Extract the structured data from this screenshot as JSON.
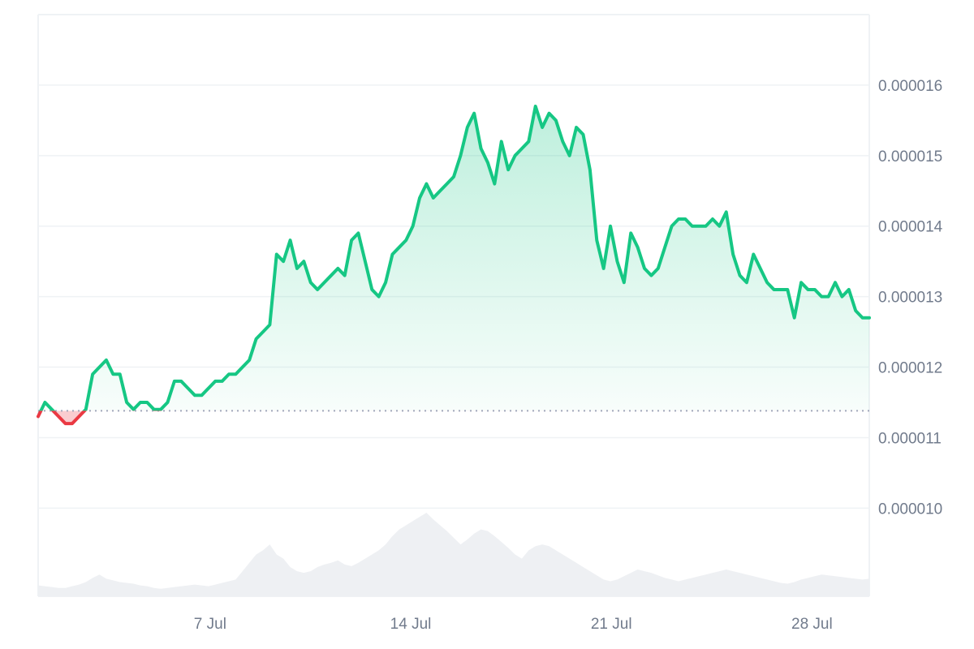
{
  "chart_data": {
    "type": "area",
    "title": "",
    "xlabel": "",
    "ylabel": "",
    "x_ticks": [
      "7 Jul",
      "14 Jul",
      "21 Jul",
      "28 Jul"
    ],
    "y_ticks": [
      "0.000010",
      "0.000011",
      "0.000012",
      "0.000013",
      "0.000014",
      "0.000015",
      "0.000016"
    ],
    "ylim": [
      8.75e-06,
      1.7e-05
    ],
    "x_range": [
      "1 Jul",
      "30 Jul"
    ],
    "baseline": 1.138e-05,
    "grid": true,
    "legend": "none",
    "colors": {
      "up_line": "#16c784",
      "down_line": "#ea3943",
      "up_fill": "#16c784",
      "down_fill": "#ea3943",
      "volume": "#eef0f3",
      "grid": "#eff2f5",
      "baseline": "#a1a7bb",
      "axis_text": "#717b8c"
    },
    "series": [
      {
        "x": [
          "1 Jul",
          "1 Jul",
          "1 Jul",
          "2 Jul",
          "2 Jul",
          "2 Jul",
          "2 Jul",
          "2 Jul",
          "3 Jul",
          "3 Jul",
          "3 Jul",
          "3 Jul",
          "3 Jul",
          "4 Jul",
          "4 Jul",
          "4 Jul",
          "4 Jul",
          "5 Jul",
          "5 Jul",
          "5 Jul",
          "5 Jul",
          "5 Jul",
          "6 Jul",
          "6 Jul",
          "6 Jul",
          "6 Jul",
          "7 Jul",
          "7 Jul",
          "7 Jul",
          "7 Jul",
          "8 Jul",
          "8 Jul",
          "8 Jul",
          "8 Jul",
          "8 Jul",
          "9 Jul",
          "9 Jul",
          "9 Jul",
          "9 Jul",
          "10 Jul",
          "10 Jul",
          "10 Jul",
          "10 Jul",
          "10 Jul",
          "11 Jul",
          "11 Jul",
          "11 Jul",
          "11 Jul",
          "12 Jul",
          "12 Jul",
          "12 Jul",
          "12 Jul",
          "13 Jul",
          "13 Jul",
          "13 Jul",
          "13 Jul",
          "14 Jul",
          "14 Jul",
          "14 Jul",
          "14 Jul",
          "15 Jul",
          "15 Jul",
          "15 Jul",
          "15 Jul",
          "16 Jul",
          "16 Jul",
          "16 Jul",
          "16 Jul",
          "17 Jul",
          "17 Jul",
          "17 Jul",
          "17 Jul",
          "18 Jul",
          "18 Jul",
          "18 Jul",
          "18 Jul",
          "19 Jul",
          "19 Jul",
          "19 Jul",
          "19 Jul",
          "20 Jul",
          "20 Jul",
          "20 Jul",
          "20 Jul",
          "21 Jul",
          "21 Jul",
          "21 Jul",
          "21 Jul",
          "22 Jul",
          "22 Jul",
          "22 Jul",
          "22 Jul",
          "23 Jul",
          "23 Jul",
          "23 Jul",
          "23 Jul",
          "24 Jul",
          "24 Jul",
          "24 Jul",
          "24 Jul",
          "25 Jul",
          "25 Jul",
          "25 Jul",
          "25 Jul",
          "26 Jul",
          "26 Jul",
          "26 Jul",
          "26 Jul",
          "27 Jul",
          "27 Jul",
          "27 Jul",
          "27 Jul",
          "28 Jul",
          "28 Jul",
          "28 Jul",
          "28 Jul",
          "29 Jul",
          "29 Jul",
          "29 Jul",
          "29 Jul",
          "30 Jul",
          "30 Jul",
          "30 Jul"
        ],
        "price": [
          1.13e-05,
          1.15e-05,
          1.14e-05,
          1.13e-05,
          1.12e-05,
          1.12e-05,
          1.13e-05,
          1.14e-05,
          1.19e-05,
          1.2e-05,
          1.21e-05,
          1.19e-05,
          1.19e-05,
          1.15e-05,
          1.14e-05,
          1.15e-05,
          1.15e-05,
          1.14e-05,
          1.14e-05,
          1.15e-05,
          1.18e-05,
          1.18e-05,
          1.17e-05,
          1.16e-05,
          1.16e-05,
          1.17e-05,
          1.18e-05,
          1.18e-05,
          1.19e-05,
          1.19e-05,
          1.2e-05,
          1.21e-05,
          1.24e-05,
          1.25e-05,
          1.26e-05,
          1.36e-05,
          1.35e-05,
          1.38e-05,
          1.34e-05,
          1.35e-05,
          1.32e-05,
          1.31e-05,
          1.32e-05,
          1.33e-05,
          1.34e-05,
          1.33e-05,
          1.38e-05,
          1.39e-05,
          1.35e-05,
          1.31e-05,
          1.3e-05,
          1.32e-05,
          1.36e-05,
          1.37e-05,
          1.38e-05,
          1.4e-05,
          1.44e-05,
          1.46e-05,
          1.44e-05,
          1.45e-05,
          1.46e-05,
          1.47e-05,
          1.5e-05,
          1.54e-05,
          1.56e-05,
          1.51e-05,
          1.49e-05,
          1.46e-05,
          1.52e-05,
          1.48e-05,
          1.5e-05,
          1.51e-05,
          1.52e-05,
          1.57e-05,
          1.54e-05,
          1.56e-05,
          1.55e-05,
          1.52e-05,
          1.5e-05,
          1.54e-05,
          1.53e-05,
          1.48e-05,
          1.38e-05,
          1.34e-05,
          1.4e-05,
          1.35e-05,
          1.32e-05,
          1.39e-05,
          1.37e-05,
          1.34e-05,
          1.33e-05,
          1.34e-05,
          1.37e-05,
          1.4e-05,
          1.41e-05,
          1.41e-05,
          1.4e-05,
          1.4e-05,
          1.4e-05,
          1.41e-05,
          1.4e-05,
          1.42e-05,
          1.36e-05,
          1.33e-05,
          1.32e-05,
          1.36e-05,
          1.34e-05,
          1.32e-05,
          1.31e-05,
          1.31e-05,
          1.31e-05,
          1.27e-05,
          1.32e-05,
          1.31e-05,
          1.31e-05,
          1.3e-05,
          1.3e-05,
          1.32e-05,
          1.3e-05,
          1.31e-05,
          1.28e-05,
          1.27e-05,
          1.27e-05
        ],
        "volume": [
          0.13,
          0.12,
          0.11,
          0.1,
          0.1,
          0.12,
          0.14,
          0.17,
          0.22,
          0.26,
          0.21,
          0.19,
          0.17,
          0.16,
          0.15,
          0.13,
          0.12,
          0.1,
          0.09,
          0.1,
          0.11,
          0.12,
          0.13,
          0.14,
          0.13,
          0.12,
          0.14,
          0.16,
          0.18,
          0.2,
          0.3,
          0.4,
          0.5,
          0.55,
          0.62,
          0.5,
          0.45,
          0.35,
          0.3,
          0.28,
          0.3,
          0.35,
          0.38,
          0.4,
          0.43,
          0.38,
          0.36,
          0.4,
          0.45,
          0.5,
          0.55,
          0.62,
          0.72,
          0.8,
          0.85,
          0.9,
          0.95,
          1.0,
          0.92,
          0.85,
          0.78,
          0.7,
          0.62,
          0.68,
          0.75,
          0.8,
          0.78,
          0.72,
          0.65,
          0.58,
          0.5,
          0.45,
          0.55,
          0.6,
          0.62,
          0.6,
          0.55,
          0.5,
          0.45,
          0.4,
          0.35,
          0.3,
          0.25,
          0.2,
          0.18,
          0.2,
          0.24,
          0.28,
          0.32,
          0.3,
          0.28,
          0.25,
          0.22,
          0.2,
          0.18,
          0.2,
          0.22,
          0.24,
          0.26,
          0.28,
          0.3,
          0.32,
          0.3,
          0.28,
          0.26,
          0.24,
          0.22,
          0.2,
          0.18,
          0.16,
          0.15,
          0.17,
          0.2,
          0.22,
          0.24,
          0.26,
          0.25,
          0.24,
          0.23,
          0.22,
          0.21,
          0.2,
          0.21
        ]
      }
    ]
  }
}
